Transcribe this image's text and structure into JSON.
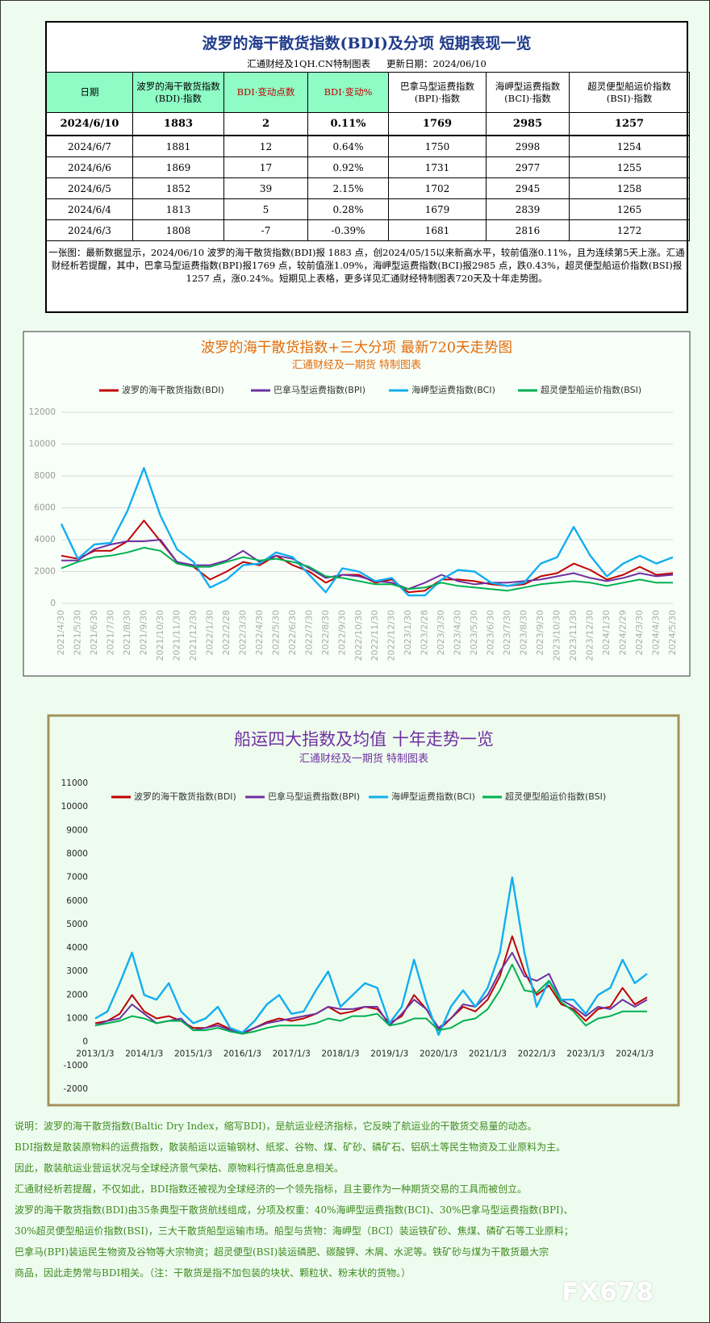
{
  "table_header": {
    "title": "波罗的海干散货指数(BDI)及分项  短期表现一览",
    "source": "汇通财经及1QH.CN特制图表",
    "updated": "更新日期：2024/06/10"
  },
  "table": {
    "columns": [
      [
        "日期"
      ],
      [
        "波罗的海干散货指数",
        "(BDI)·指数"
      ],
      [
        "BDI·变动点数"
      ],
      [
        "BDI·变动%"
      ],
      [
        "巴拿马型运费指数",
        "(BPI)·指数"
      ],
      [
        "海岬型运费指数",
        "(BCI)·指数"
      ],
      [
        "超灵便型船运价指数",
        "(BSI)·指数"
      ]
    ],
    "rows": [
      [
        "2024/6/10",
        "1883",
        "2",
        "0.11%",
        "1769",
        "2985",
        "1257"
      ],
      [
        "2024/6/7",
        "1881",
        "12",
        "0.64%",
        "1750",
        "2998",
        "1254"
      ],
      [
        "2024/6/6",
        "1869",
        "17",
        "0.92%",
        "1731",
        "2977",
        "1255"
      ],
      [
        "2024/6/5",
        "1852",
        "39",
        "2.15%",
        "1702",
        "2945",
        "1258"
      ],
      [
        "2024/6/4",
        "1813",
        "5",
        "0.28%",
        "1679",
        "2839",
        "1265"
      ],
      [
        "2024/6/3",
        "1808",
        "-7",
        "-0.39%",
        "1681",
        "2816",
        "1272"
      ]
    ]
  },
  "summary": "一张图：最新数据显示，2024/06/10 波罗的海干散货指数(BDI)报 1883 点，创2024/05/15以来新高水平，较前值涨0.11%，且为连续第5天上涨。汇通财经析若提醒，其中，巴拿马型运费指数(BPI)报1769 点，较前值涨1.09%，海岬型运费指数(BCI)报2985 点，跌0.43%，超灵便型船运价指数(BSI)报1257 点，涨0.24%。短期见上表格，更多详见汇通财经特制图表720天及十年走势图。",
  "chart_data": [
    {
      "type": "line",
      "title": "波罗的海干散货指数+三大分项  最新720天走势图",
      "subtitle": "汇通财经及一期货  特制图表",
      "color": "#e36c0a",
      "categories": [
        "2021/4/30",
        "2021/5/30",
        "2021/6/30",
        "2021/7/30",
        "2021/8/30",
        "2021/9/30",
        "2021/10/30",
        "2021/11/30",
        "2021/12/30",
        "2022/1/30",
        "2022/2/28",
        "2022/3/30",
        "2022/4/30",
        "2022/5/30",
        "2022/6/30",
        "2022/7/30",
        "2022/8/30",
        "2022/9/30",
        "2022/10/30",
        "2022/11/30",
        "2022/12/30",
        "2023/1/30",
        "2023/2/28",
        "2023/3/30",
        "2023/4/30",
        "2023/5/30",
        "2023/6/30",
        "2023/7/30",
        "2023/8/30",
        "2023/9/30",
        "2023/10/30",
        "2023/11/30",
        "2023/12/30",
        "2024/1/30",
        "2024/2/29",
        "2024/3/30",
        "2024/4/30",
        "2024/5/30"
      ],
      "series": [
        {
          "name": "波罗的海干散货指数(BDI)",
          "color": "#c00000",
          "values": [
            3000,
            2800,
            3300,
            3300,
            3900,
            5200,
            3900,
            2600,
            2300,
            1500,
            2000,
            2600,
            2400,
            3000,
            2400,
            2000,
            1300,
            1800,
            1800,
            1300,
            1500,
            700,
            800,
            1500,
            1500,
            1400,
            1200,
            1100,
            1200,
            1700,
            1900,
            2500,
            2100,
            1500,
            1800,
            2300,
            1800,
            1900
          ]
        },
        {
          "name": "巴拿马型运费指数(BPI)",
          "color": "#7030a0",
          "values": [
            2700,
            2700,
            3400,
            3700,
            3900,
            3900,
            4000,
            2600,
            2400,
            2400,
            2700,
            3300,
            2600,
            3000,
            2800,
            2200,
            1600,
            1800,
            1700,
            1400,
            1300,
            900,
            1300,
            1800,
            1400,
            1200,
            1300,
            1300,
            1400,
            1500,
            1700,
            1900,
            1600,
            1400,
            1600,
            1900,
            1700,
            1800
          ]
        },
        {
          "name": "海岬型运费指数(BCI)",
          "color": "#12aef0",
          "values": [
            5000,
            2800,
            3700,
            3800,
            5800,
            8500,
            5500,
            3400,
            2600,
            1000,
            1500,
            2400,
            2500,
            3200,
            2900,
            1800,
            700,
            2200,
            2000,
            1400,
            1600,
            500,
            500,
            1500,
            2100,
            2000,
            1300,
            1100,
            1300,
            2500,
            2900,
            4800,
            3000,
            1700,
            2500,
            3000,
            2500,
            2900
          ]
        },
        {
          "name": "超灵便型船运价指数(BSI)",
          "color": "#00b050",
          "values": [
            2200,
            2600,
            2900,
            3000,
            3200,
            3500,
            3300,
            2500,
            2300,
            2300,
            2600,
            2900,
            2700,
            2800,
            2600,
            2300,
            1700,
            1600,
            1400,
            1200,
            1200,
            900,
            1000,
            1300,
            1100,
            1000,
            900,
            800,
            1000,
            1200,
            1300,
            1400,
            1300,
            1100,
            1300,
            1500,
            1300,
            1300
          ]
        }
      ],
      "ylim": [
        0,
        12000
      ],
      "yticks": [
        0,
        2000,
        4000,
        6000,
        8000,
        10000,
        12000
      ],
      "grid": true,
      "legend": "top"
    },
    {
      "type": "line",
      "title": "船运四大指数及均值 十年走势一览",
      "subtitle": "汇通财经及一期货 特制图表",
      "color": "#7030a0",
      "categories": [
        "2013/1/3",
        null,
        null,
        null,
        "2014/1/3",
        null,
        null,
        null,
        "2015/1/3",
        null,
        null,
        null,
        "2016/1/3",
        null,
        null,
        null,
        "2017/1/3",
        null,
        null,
        null,
        "2018/1/3",
        null,
        null,
        null,
        "2019/1/3",
        null,
        null,
        null,
        "2020/1/3",
        null,
        null,
        null,
        "2021/1/3",
        null,
        null,
        null,
        "2022/1/3",
        null,
        null,
        null,
        "2023/1/3",
        null,
        null,
        null,
        "2024/1/3",
        null
      ],
      "series": [
        {
          "name": "波罗的海干散货指数(BDI)",
          "color": "#c00000",
          "values": [
            800,
            900,
            1200,
            2000,
            1300,
            1000,
            1100,
            900,
            600,
            600,
            800,
            550,
            350,
            600,
            850,
            1000,
            900,
            1000,
            1200,
            1500,
            1200,
            1300,
            1500,
            1400,
            800,
            1100,
            2000,
            1400,
            500,
            1000,
            1500,
            1300,
            1800,
            2800,
            4500,
            3000,
            2000,
            2400,
            1600,
            1400,
            900,
            1400,
            1500,
            2300,
            1600,
            1900
          ]
        },
        {
          "name": "巴拿马型运费指数(BPI)",
          "color": "#7030a0",
          "values": [
            700,
            900,
            1000,
            1600,
            1200,
            800,
            900,
            1000,
            500,
            600,
            700,
            500,
            400,
            600,
            800,
            900,
            1000,
            1100,
            1200,
            1500,
            1400,
            1400,
            1500,
            1500,
            700,
            1200,
            1800,
            1400,
            600,
            1000,
            1600,
            1500,
            2000,
            3000,
            3800,
            2800,
            2600,
            2900,
            1800,
            1500,
            1100,
            1500,
            1400,
            1800,
            1500,
            1800
          ]
        },
        {
          "name": "海岬型运费指数(BCI)",
          "color": "#12aef0",
          "values": [
            1000,
            1300,
            2500,
            3800,
            2000,
            1800,
            2500,
            1300,
            800,
            1000,
            1500,
            600,
            400,
            900,
            1600,
            2000,
            1200,
            1300,
            2200,
            3000,
            1500,
            2000,
            2500,
            2300,
            800,
            1500,
            3500,
            1700,
            300,
            1500,
            2200,
            1500,
            2300,
            3800,
            7000,
            3800,
            1500,
            2600,
            1800,
            1800,
            1200,
            2000,
            2300,
            3500,
            2500,
            2900
          ]
        },
        {
          "name": "超灵便型船运价指数(BSI)",
          "color": "#00b050",
          "values": [
            700,
            800,
            900,
            1100,
            1000,
            800,
            900,
            900,
            500,
            500,
            600,
            450,
            350,
            450,
            600,
            700,
            700,
            700,
            800,
            1000,
            900,
            1100,
            1100,
            1200,
            700,
            800,
            1000,
            1000,
            500,
            600,
            900,
            1000,
            1400,
            2200,
            3300,
            2200,
            2100,
            2600,
            1700,
            1300,
            700,
            1000,
            1100,
            1300,
            1300,
            1300
          ]
        }
      ],
      "ylim": [
        -2000,
        11000
      ],
      "yticks": [
        -2000,
        -1000,
        0,
        1000,
        2000,
        3000,
        4000,
        5000,
        6000,
        7000,
        8000,
        9000,
        10000,
        11000
      ],
      "grid": false,
      "legend": "top"
    }
  ],
  "notes": [
    "说明：波罗的海干散货指数(Baltic Dry Index，缩写BDI)，是航运业经济指标，它反映了航运业的干散货交易量的动态。",
    "BDI指数是散装原物料的运费指数，散装船运以运输钢材、纸浆、谷物、煤、矿砂、磷矿石、铝矾土等民生物资及工业原料为主。",
    "因此，散装航运业营运状况与全球经济景气荣枯、原物料行情高低息息相关。",
    "汇通财经析若提醒，不仅如此，BDI指数还被视为全球经济的一个领先指标，且主要作为一种期货交易的工具而被创立。",
    "波罗的海干散货指数(BDI)由35条典型干散货航线组成，分项及权重：40%海岬型运费指数(BCI)、30%巴拿马型运费指数(BPI)、",
    "30%超灵便型船运价指数(BSI)，三大干散货船型运输市场。船型与货物：海岬型（BCI）装运铁矿砂、焦煤、磷矿石等工业原料；",
    "巴拿马(BPI)装运民生物资及谷物等大宗物资；超灵便型(BSI)装运磷肥、碳酸钾、木屑、水泥等。铁矿砂与煤为干散货最大宗",
    "商品，因此走势常与BDI相关。（注：干散货是指不加包装的块状、颗粒状、粉末状的货物。）"
  ],
  "watermark": "FX678"
}
